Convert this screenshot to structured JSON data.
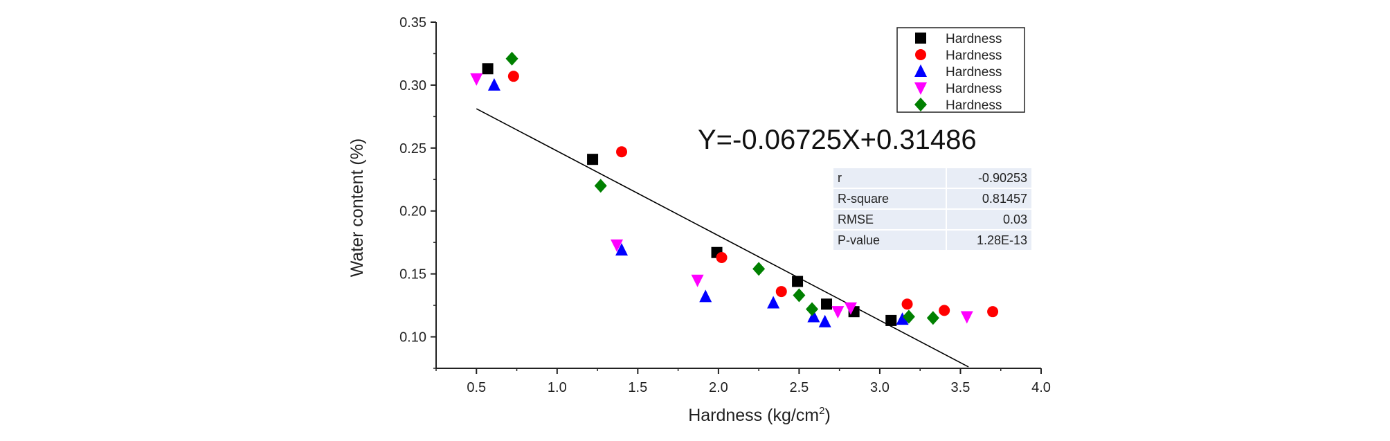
{
  "chart_data": {
    "type": "scatter",
    "xlabel": "Hardness (kg/cm",
    "xlabel_superscript": "2",
    "xlabel_suffix": ")",
    "ylabel": "Water content (%)",
    "xlim": [
      0.25,
      4.0
    ],
    "ylim": [
      0.075,
      0.35
    ],
    "x_ticks": [
      "0.5",
      "1.0",
      "1.5",
      "2.0",
      "2.5",
      "3.0",
      "3.5",
      "4.0"
    ],
    "y_ticks": [
      "0.10",
      "0.15",
      "0.20",
      "0.25",
      "0.30",
      "0.35"
    ],
    "legend_position": "top-right",
    "grid": false,
    "series": [
      {
        "name": "Hardness",
        "marker": "square",
        "color": "#000000",
        "points": [
          [
            0.57,
            0.313
          ],
          [
            1.22,
            0.241
          ],
          [
            1.99,
            0.167
          ],
          [
            2.49,
            0.144
          ],
          [
            2.67,
            0.126
          ],
          [
            2.84,
            0.12
          ],
          [
            3.07,
            0.113
          ]
        ]
      },
      {
        "name": "Hardness",
        "marker": "circle",
        "color": "#ff0000",
        "points": [
          [
            0.73,
            0.307
          ],
          [
            1.4,
            0.247
          ],
          [
            2.02,
            0.163
          ],
          [
            2.39,
            0.136
          ],
          [
            3.17,
            0.126
          ],
          [
            3.4,
            0.121
          ],
          [
            3.7,
            0.12
          ]
        ]
      },
      {
        "name": "Hardness",
        "marker": "triangle-up",
        "color": "#0000ff",
        "points": [
          [
            0.61,
            0.3
          ],
          [
            1.4,
            0.169
          ],
          [
            1.92,
            0.132
          ],
          [
            2.34,
            0.127
          ],
          [
            2.59,
            0.116
          ],
          [
            2.66,
            0.112
          ],
          [
            3.14,
            0.114
          ]
        ]
      },
      {
        "name": "Hardness",
        "marker": "triangle-down",
        "color": "#ff00ff",
        "points": [
          [
            0.5,
            0.305
          ],
          [
            1.37,
            0.173
          ],
          [
            1.87,
            0.145
          ],
          [
            2.74,
            0.12
          ],
          [
            2.82,
            0.123
          ],
          [
            3.54,
            0.116
          ]
        ]
      },
      {
        "name": "Hardness",
        "marker": "diamond",
        "color": "#008000",
        "points": [
          [
            0.72,
            0.321
          ],
          [
            1.27,
            0.22
          ],
          [
            2.25,
            0.154
          ],
          [
            2.5,
            0.133
          ],
          [
            2.58,
            0.122
          ],
          [
            3.18,
            0.116
          ],
          [
            3.33,
            0.115
          ]
        ]
      }
    ],
    "fit_line": {
      "slope": -0.06725,
      "intercept": 0.31486,
      "x_range": [
        0.5,
        3.55
      ],
      "color": "#000000"
    },
    "equation": "Y=-0.06725X+0.31486",
    "stats": [
      {
        "label": "r",
        "value": "-0.90253"
      },
      {
        "label": "R-square",
        "value": "0.81457"
      },
      {
        "label": "RMSE",
        "value": "0.03"
      },
      {
        "label": "P-value",
        "value": "1.28E-13"
      }
    ]
  }
}
